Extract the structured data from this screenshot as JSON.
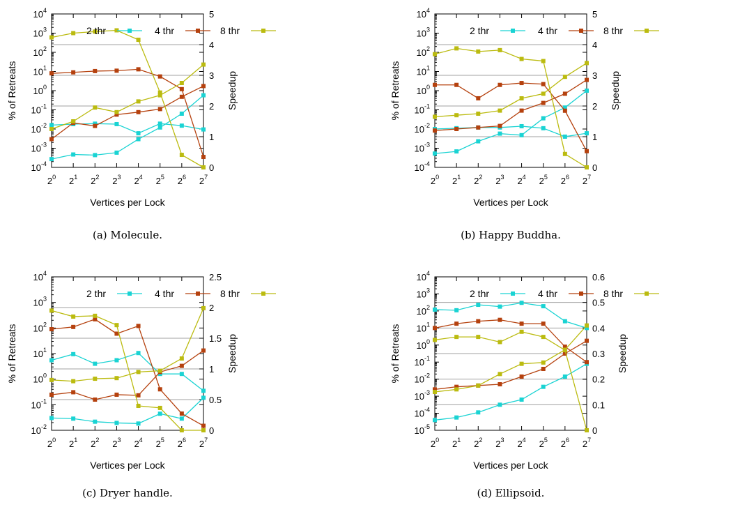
{
  "chart_data": [
    {
      "type": "line",
      "caption": "(a) Molecule.",
      "xlabel": "Vertices per Lock",
      "ylabel": "% of Retreats",
      "y2label": "Speedup",
      "x_ticks": [
        {
          "b": "2",
          "e": "0"
        },
        {
          "b": "2",
          "e": "1"
        },
        {
          "b": "2",
          "e": "2"
        },
        {
          "b": "2",
          "e": "3"
        },
        {
          "b": "2",
          "e": "4"
        },
        {
          "b": "2",
          "e": "5"
        },
        {
          "b": "2",
          "e": "6"
        },
        {
          "b": "2",
          "e": "7"
        }
      ],
      "x": [
        1,
        2,
        4,
        8,
        16,
        32,
        64,
        128
      ],
      "ylim_exp": [
        -4,
        4
      ],
      "y_ticks": [
        {
          "b": "10",
          "e": "-4"
        },
        {
          "b": "10",
          "e": "-3"
        },
        {
          "b": "10",
          "e": "-2"
        },
        {
          "b": "10",
          "e": "-1"
        },
        {
          "b": "10",
          "e": "0"
        },
        {
          "b": "10",
          "e": "1"
        },
        {
          "b": "10",
          "e": "2"
        },
        {
          "b": "10",
          "e": "3"
        },
        {
          "b": "10",
          "e": "4"
        }
      ],
      "y2lim": [
        0,
        5
      ],
      "y2_ticks": [
        "0",
        "1",
        "2",
        "3",
        "4",
        "5"
      ],
      "legend": [
        "2 thr",
        "4 thr",
        "8 thr"
      ],
      "series": [
        {
          "name": "2 thr",
          "color": "#1ad3d3",
          "retreats": [
            0.016,
            0.018,
            0.019,
            0.018,
            0.006,
            0.019,
            0.015,
            0.0095
          ],
          "speedup": [
            0.27,
            0.42,
            0.4,
            0.48,
            0.92,
            1.3,
            1.75,
            2.35
          ]
        },
        {
          "name": "4 thr",
          "color": "#b5410e",
          "retreats": [
            8.0,
            9.0,
            10.5,
            11.0,
            13.0,
            5.5,
            1.2,
            0.00035
          ],
          "speedup": [
            0.92,
            1.45,
            1.35,
            1.72,
            1.8,
            1.9,
            2.3,
            2.65
          ]
        },
        {
          "name": "8 thr",
          "color": "#bbbb10",
          "retreats": [
            600,
            1000,
            1200,
            1400,
            450,
            0.8,
            0.00045,
            0.0001
          ],
          "speedup": [
            1.25,
            1.5,
            1.95,
            1.8,
            2.15,
            2.35,
            2.75,
            3.35
          ]
        }
      ]
    },
    {
      "type": "line",
      "caption": "(b) Happy Buddha.",
      "xlabel": "Vertices per Lock",
      "ylabel": "% of Retreats",
      "y2label": "Speedup",
      "x_ticks": [
        {
          "b": "2",
          "e": "0"
        },
        {
          "b": "2",
          "e": "1"
        },
        {
          "b": "2",
          "e": "2"
        },
        {
          "b": "2",
          "e": "3"
        },
        {
          "b": "2",
          "e": "4"
        },
        {
          "b": "2",
          "e": "5"
        },
        {
          "b": "2",
          "e": "6"
        },
        {
          "b": "2",
          "e": "7"
        }
      ],
      "x": [
        1,
        2,
        4,
        8,
        16,
        32,
        64,
        128
      ],
      "ylim_exp": [
        -4,
        4
      ],
      "y_ticks": [
        {
          "b": "10",
          "e": "-4"
        },
        {
          "b": "10",
          "e": "-3"
        },
        {
          "b": "10",
          "e": "-2"
        },
        {
          "b": "10",
          "e": "-1"
        },
        {
          "b": "10",
          "e": "0"
        },
        {
          "b": "10",
          "e": "1"
        },
        {
          "b": "10",
          "e": "2"
        },
        {
          "b": "10",
          "e": "3"
        },
        {
          "b": "10",
          "e": "4"
        }
      ],
      "y2lim": [
        0,
        5
      ],
      "y2_ticks": [
        "0",
        "1",
        "2",
        "3",
        "4",
        "5"
      ],
      "legend": [
        "2 thr",
        "4 thr",
        "8 thr"
      ],
      "series": [
        {
          "name": "2 thr",
          "color": "#1ad3d3",
          "retreats": [
            0.01,
            0.011,
            0.012,
            0.012,
            0.014,
            0.011,
            0.004,
            0.006
          ],
          "speedup": [
            0.45,
            0.52,
            0.85,
            1.1,
            1.05,
            1.6,
            1.95,
            2.5
          ]
        },
        {
          "name": "4 thr",
          "color": "#b5410e",
          "retreats": [
            2.0,
            2.0,
            0.4,
            2.0,
            2.5,
            2.2,
            0.09,
            0.0007
          ],
          "speedup": [
            1.2,
            1.25,
            1.3,
            1.35,
            1.85,
            2.1,
            2.4,
            2.85
          ]
        },
        {
          "name": "8 thr",
          "color": "#bbbb10",
          "retreats": [
            80,
            160,
            110,
            130,
            45,
            35,
            0.0005,
            0.0001
          ],
          "speedup": [
            1.65,
            1.7,
            1.75,
            1.85,
            2.25,
            2.4,
            2.95,
            3.4
          ]
        }
      ]
    },
    {
      "type": "line",
      "caption": "(c) Dryer handle.",
      "xlabel": "Vertices per Lock",
      "ylabel": "% of Retreats",
      "y2label": "Speedup",
      "x_ticks": [
        {
          "b": "2",
          "e": "0"
        },
        {
          "b": "2",
          "e": "1"
        },
        {
          "b": "2",
          "e": "2"
        },
        {
          "b": "2",
          "e": "3"
        },
        {
          "b": "2",
          "e": "4"
        },
        {
          "b": "2",
          "e": "5"
        },
        {
          "b": "2",
          "e": "6"
        },
        {
          "b": "2",
          "e": "7"
        }
      ],
      "x": [
        1,
        2,
        4,
        8,
        16,
        32,
        64,
        128
      ],
      "ylim_exp": [
        -2,
        4
      ],
      "y_ticks": [
        {
          "b": "10",
          "e": "-2"
        },
        {
          "b": "10",
          "e": "-1"
        },
        {
          "b": "10",
          "e": "0"
        },
        {
          "b": "10",
          "e": "1"
        },
        {
          "b": "10",
          "e": "2"
        },
        {
          "b": "10",
          "e": "3"
        },
        {
          "b": "10",
          "e": "4"
        }
      ],
      "y2lim": [
        0,
        2.5
      ],
      "y2_ticks": [
        "0",
        "0.5",
        "1",
        "1.5",
        "2",
        "2.5"
      ],
      "legend": [
        "2 thr",
        "4 thr",
        "8 thr"
      ],
      "series": [
        {
          "name": "2 thr",
          "color": "#1ad3d3",
          "retreats": [
            5.5,
            9.5,
            4.0,
            5.5,
            10.5,
            1.6,
            1.6,
            0.35
          ],
          "speedup": [
            0.2,
            0.19,
            0.14,
            0.12,
            0.11,
            0.27,
            0.19,
            0.53
          ]
        },
        {
          "name": "4 thr",
          "color": "#b5410e",
          "retreats": [
            90,
            110,
            220,
            60,
            120,
            0.4,
            0.045,
            0.015
          ],
          "speedup": [
            0.58,
            0.62,
            0.5,
            0.58,
            0.57,
            0.95,
            1.05,
            1.3
          ]
        },
        {
          "name": "8 thr",
          "color": "#bbbb10",
          "retreats": [
            480,
            280,
            300,
            130,
            0.09,
            0.075,
            0.01,
            0.01
          ],
          "speedup": [
            0.82,
            0.8,
            0.84,
            0.85,
            0.95,
            0.97,
            1.17,
            1.99
          ]
        }
      ]
    },
    {
      "type": "line",
      "caption": "(d) Ellipsoid.",
      "xlabel": "Vertices per Lock",
      "ylabel": "% of Retreats",
      "y2label": "Speedup",
      "x_ticks": [
        {
          "b": "2",
          "e": "0"
        },
        {
          "b": "2",
          "e": "1"
        },
        {
          "b": "2",
          "e": "2"
        },
        {
          "b": "2",
          "e": "3"
        },
        {
          "b": "2",
          "e": "4"
        },
        {
          "b": "2",
          "e": "5"
        },
        {
          "b": "2",
          "e": "6"
        },
        {
          "b": "2",
          "e": "7"
        }
      ],
      "x": [
        1,
        2,
        4,
        8,
        16,
        32,
        64,
        128
      ],
      "ylim_exp": [
        -5,
        4
      ],
      "y_ticks": [
        {
          "b": "10",
          "e": "-5"
        },
        {
          "b": "10",
          "e": "-4"
        },
        {
          "b": "10",
          "e": "-3"
        },
        {
          "b": "10",
          "e": "-2"
        },
        {
          "b": "10",
          "e": "-1"
        },
        {
          "b": "10",
          "e": "0"
        },
        {
          "b": "10",
          "e": "1"
        },
        {
          "b": "10",
          "e": "2"
        },
        {
          "b": "10",
          "e": "3"
        },
        {
          "b": "10",
          "e": "4"
        }
      ],
      "y2lim": [
        0,
        0.6
      ],
      "y2_ticks": [
        "0",
        "0.1",
        "0.2",
        "0.3",
        "0.4",
        "0.5",
        "0.6"
      ],
      "legend": [
        "2 thr",
        "4 thr",
        "8 thr"
      ],
      "series": [
        {
          "name": "2 thr",
          "color": "#1ad3d3",
          "retreats": [
            120,
            110,
            230,
            180,
            300,
            190,
            25,
            10
          ],
          "speedup": [
            0.04,
            0.05,
            0.07,
            0.1,
            0.12,
            0.17,
            0.21,
            0.26
          ]
        },
        {
          "name": "4 thr",
          "color": "#b5410e",
          "retreats": [
            10,
            18,
            25,
            30,
            18,
            18,
            0.8,
            0.1
          ],
          "speedup": [
            0.16,
            0.17,
            0.175,
            0.18,
            0.21,
            0.24,
            0.3,
            0.35
          ]
        },
        {
          "name": "8 thr",
          "color": "#bbbb10",
          "retreats": [
            2.0,
            3.0,
            3.0,
            1.5,
            6.0,
            3.0,
            0.5,
            1e-05
          ],
          "speedup": [
            0.15,
            0.16,
            0.175,
            0.22,
            0.26,
            0.265,
            0.315,
            0.41
          ]
        }
      ]
    }
  ]
}
